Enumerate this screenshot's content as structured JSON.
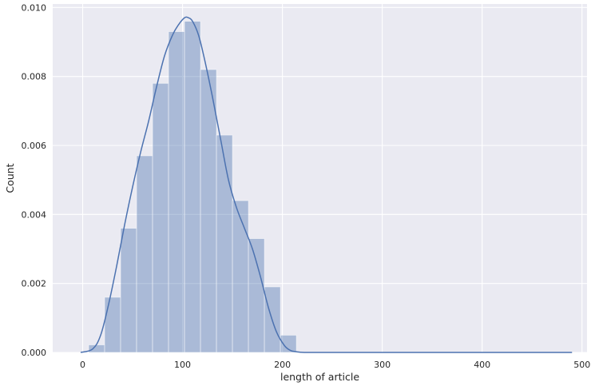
{
  "chart_data": {
    "type": "bar",
    "title": "",
    "xlabel": "length of article",
    "ylabel": "Count",
    "xlim": [
      -30,
      505
    ],
    "ylim": [
      0,
      0.0101
    ],
    "xticks": [
      0,
      100,
      200,
      300,
      400,
      500
    ],
    "yticks": [
      0.0,
      0.002,
      0.004,
      0.006,
      0.008,
      0.01
    ],
    "xtick_labels": [
      "0",
      "100",
      "200",
      "300",
      "400",
      "500"
    ],
    "ytick_labels": [
      "0.000",
      "0.002",
      "0.004",
      "0.006",
      "0.008",
      "0.010"
    ],
    "grid": true,
    "bins": [
      {
        "x0": 6,
        "x1": 22,
        "value": 0.00022
      },
      {
        "x0": 22,
        "x1": 38,
        "value": 0.0016
      },
      {
        "x0": 38,
        "x1": 54,
        "value": 0.0036
      },
      {
        "x0": 54,
        "x1": 70,
        "value": 0.0057
      },
      {
        "x0": 70,
        "x1": 86,
        "value": 0.0078
      },
      {
        "x0": 86,
        "x1": 102,
        "value": 0.0093
      },
      {
        "x0": 102,
        "x1": 118,
        "value": 0.0096
      },
      {
        "x0": 118,
        "x1": 134,
        "value": 0.0082
      },
      {
        "x0": 134,
        "x1": 150,
        "value": 0.0063
      },
      {
        "x0": 150,
        "x1": 166,
        "value": 0.0044
      },
      {
        "x0": 166,
        "x1": 182,
        "value": 0.0033
      },
      {
        "x0": 182,
        "x1": 198,
        "value": 0.0019
      },
      {
        "x0": 198,
        "x1": 214,
        "value": 0.0005
      }
    ],
    "kde": {
      "x": [
        -2,
        10,
        18,
        26,
        34,
        42,
        50,
        58,
        66,
        74,
        82,
        90,
        96,
        102,
        106,
        110,
        116,
        122,
        130,
        138,
        146,
        154,
        162,
        170,
        178,
        186,
        194,
        202,
        208,
        214,
        222,
        240,
        300,
        400,
        490
      ],
      "y": [
        0,
        0.0001,
        0.0005,
        0.0014,
        0.0025,
        0.0037,
        0.0048,
        0.0058,
        0.0067,
        0.0077,
        0.0086,
        0.0092,
        0.0095,
        0.0097,
        0.0097,
        0.0096,
        0.0092,
        0.0085,
        0.0074,
        0.0062,
        0.005,
        0.0042,
        0.0036,
        0.003,
        0.0022,
        0.0013,
        0.0006,
        0.0002,
        6e-05,
        2e-05,
        0,
        0,
        0,
        0,
        0
      ]
    },
    "colors": {
      "background": "#eaeaf2",
      "grid": "#ffffff",
      "bar_fill": "#4c72b0",
      "bar_alpha": 0.4,
      "line": "#4c72b0"
    }
  }
}
